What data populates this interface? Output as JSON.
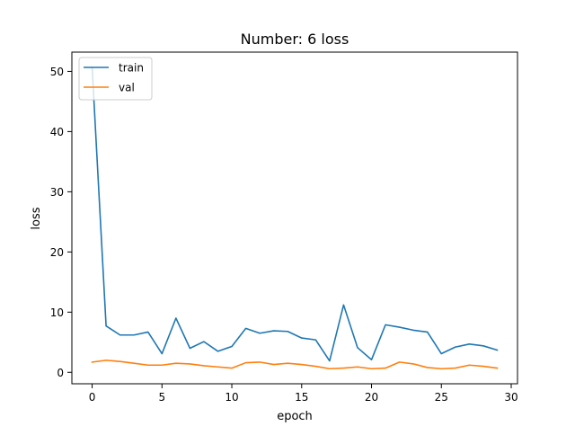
{
  "chart_data": {
    "type": "line",
    "title": "Number: 6 loss",
    "xlabel": "epoch",
    "ylabel": "loss",
    "xlim": [
      -1.45,
      30.45
    ],
    "ylim": [
      -1.9,
      53.2
    ],
    "x_ticks": [
      0,
      5,
      10,
      15,
      20,
      25,
      30
    ],
    "y_ticks": [
      0,
      10,
      20,
      30,
      40,
      50
    ],
    "grid": false,
    "legend": {
      "position": "top-left",
      "entries": [
        "train",
        "val"
      ]
    },
    "series": [
      {
        "name": "train",
        "color": "#1f77b4",
        "x": [
          0,
          1,
          2,
          3,
          4,
          5,
          6,
          7,
          8,
          9,
          10,
          11,
          12,
          13,
          14,
          15,
          16,
          17,
          18,
          19,
          20,
          21,
          22,
          23,
          24,
          25,
          26,
          27,
          28,
          29
        ],
        "y": [
          50.7,
          7.7,
          6.2,
          6.2,
          6.7,
          3.1,
          9.0,
          4.0,
          5.1,
          3.5,
          4.3,
          7.3,
          6.5,
          6.9,
          6.8,
          5.7,
          5.4,
          1.9,
          11.2,
          4.1,
          2.1,
          7.9,
          7.5,
          7.0,
          6.7,
          3.1,
          4.2,
          4.7,
          4.4,
          3.7
        ]
      },
      {
        "name": "val",
        "color": "#ff7f0e",
        "x": [
          0,
          1,
          2,
          3,
          4,
          5,
          6,
          7,
          8,
          9,
          10,
          11,
          12,
          13,
          14,
          15,
          16,
          17,
          18,
          19,
          20,
          21,
          22,
          23,
          24,
          25,
          26,
          27,
          28,
          29
        ],
        "y": [
          1.7,
          2.0,
          1.8,
          1.5,
          1.2,
          1.2,
          1.5,
          1.4,
          1.1,
          0.9,
          0.7,
          1.6,
          1.7,
          1.3,
          1.5,
          1.3,
          1.0,
          0.6,
          0.7,
          0.9,
          0.6,
          0.7,
          1.7,
          1.4,
          0.8,
          0.6,
          0.7,
          1.2,
          1.0,
          0.7
        ]
      }
    ]
  }
}
